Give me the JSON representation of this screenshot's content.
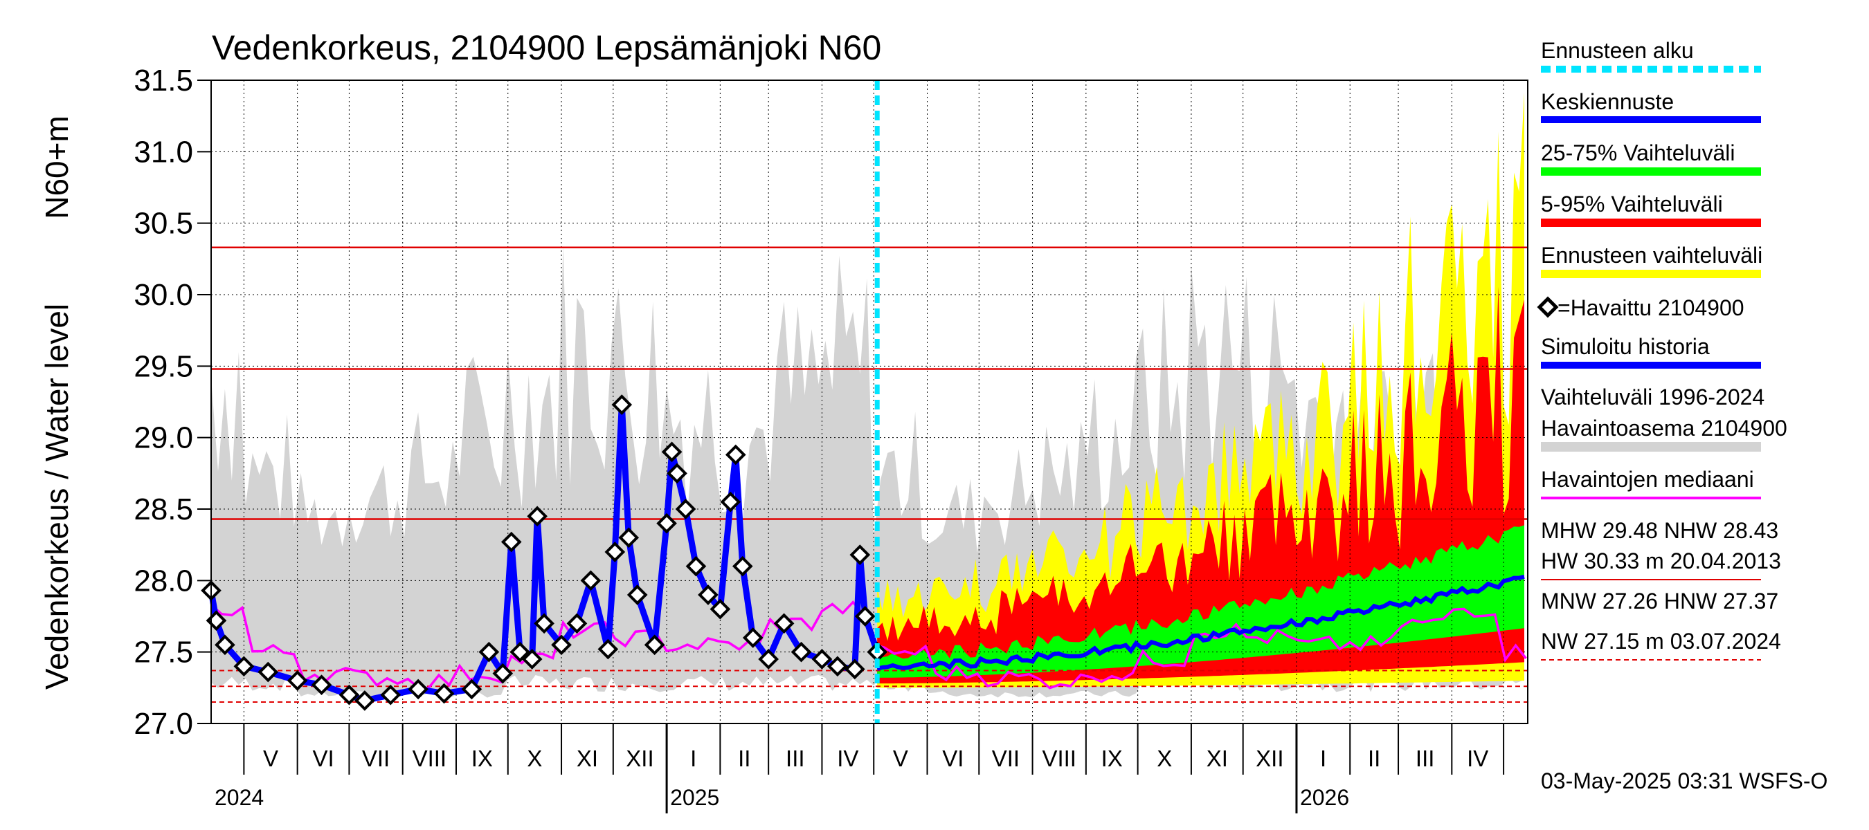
{
  "chart_data": {
    "type": "area",
    "title": "Vedenkorkeus, 2104900 Lepsämänjoki N60",
    "ylabel_unit": "N60+m",
    "ylabel": "Vedenkorkeus / Water level",
    "ylim": [
      27.0,
      31.5
    ],
    "yticks": [
      "27.0",
      "27.5",
      "28.0",
      "28.5",
      "29.0",
      "29.5",
      "30.0",
      "30.5",
      "31.0",
      "31.5"
    ],
    "xlim": [
      "2024-04-12",
      "2026-05-15"
    ],
    "forecast_start": "2025-05-03",
    "months": [
      {
        "label": "V",
        "start": "2024-05-01"
      },
      {
        "label": "VI",
        "start": "2024-06-01"
      },
      {
        "label": "VII",
        "start": "2024-07-01"
      },
      {
        "label": "VIII",
        "start": "2024-08-01"
      },
      {
        "label": "IX",
        "start": "2024-09-01"
      },
      {
        "label": "X",
        "start": "2024-10-01"
      },
      {
        "label": "XI",
        "start": "2024-11-01"
      },
      {
        "label": "XII",
        "start": "2024-12-01"
      },
      {
        "label": "I",
        "start": "2025-01-01"
      },
      {
        "label": "II",
        "start": "2025-02-01"
      },
      {
        "label": "III",
        "start": "2025-03-01"
      },
      {
        "label": "IV",
        "start": "2025-04-01"
      },
      {
        "label": "V",
        "start": "2025-05-01"
      },
      {
        "label": "VI",
        "start": "2025-06-01"
      },
      {
        "label": "VII",
        "start": "2025-07-01"
      },
      {
        "label": "VIII",
        "start": "2025-08-01"
      },
      {
        "label": "IX",
        "start": "2025-09-01"
      },
      {
        "label": "X",
        "start": "2025-10-01"
      },
      {
        "label": "XI",
        "start": "2025-11-01"
      },
      {
        "label": "XII",
        "start": "2025-12-01"
      },
      {
        "label": "I",
        "start": "2026-01-01"
      },
      {
        "label": "II",
        "start": "2026-02-01"
      },
      {
        "label": "III",
        "start": "2026-03-01"
      },
      {
        "label": "IV",
        "start": "2026-04-01"
      },
      {
        "label": "",
        "start": "2026-05-01"
      }
    ],
    "years": [
      {
        "label": "2024",
        "start": "2024-04-12"
      },
      {
        "label": "2025",
        "start": "2025-01-01"
      },
      {
        "label": "2026",
        "start": "2026-01-01"
      }
    ],
    "reference_lines": [
      {
        "name": "HW",
        "value": 30.33,
        "style": "solid"
      },
      {
        "name": "MHW",
        "value": 29.48,
        "style": "solid"
      },
      {
        "name": "NHW",
        "value": 28.43,
        "style": "solid"
      },
      {
        "name": "HNW",
        "value": 27.37,
        "style": "dashed"
      },
      {
        "name": "MNW",
        "value": 27.26,
        "style": "dashed"
      },
      {
        "name": "NW",
        "value": 27.15,
        "style": "dashed"
      }
    ],
    "observed_series": {
      "name": "=Havaittu 2104900",
      "points": [
        [
          "2024-04-12",
          27.93
        ],
        [
          "2024-04-15",
          27.72
        ],
        [
          "2024-04-20",
          27.55
        ],
        [
          "2024-05-01",
          27.4
        ],
        [
          "2024-05-15",
          27.36
        ],
        [
          "2024-06-01",
          27.3
        ],
        [
          "2024-06-15",
          27.27
        ],
        [
          "2024-07-01",
          27.2
        ],
        [
          "2024-07-10",
          27.16
        ],
        [
          "2024-07-25",
          27.2
        ],
        [
          "2024-08-10",
          27.24
        ],
        [
          "2024-08-25",
          27.21
        ],
        [
          "2024-09-10",
          27.24
        ],
        [
          "2024-09-20",
          27.5
        ],
        [
          "2024-09-28",
          27.35
        ],
        [
          "2024-10-03",
          28.27
        ],
        [
          "2024-10-08",
          27.5
        ],
        [
          "2024-10-15",
          27.45
        ],
        [
          "2024-10-18",
          28.45
        ],
        [
          "2024-10-22",
          27.7
        ],
        [
          "2024-11-01",
          27.55
        ],
        [
          "2024-11-10",
          27.7
        ],
        [
          "2024-11-18",
          28.0
        ],
        [
          "2024-11-28",
          27.52
        ],
        [
          "2024-12-02",
          28.2
        ],
        [
          "2024-12-06",
          29.23
        ],
        [
          "2024-12-10",
          28.3
        ],
        [
          "2024-12-15",
          27.9
        ],
        [
          "2024-12-25",
          27.55
        ],
        [
          "2025-01-01",
          28.4
        ],
        [
          "2025-01-04",
          28.9
        ],
        [
          "2025-01-07",
          28.75
        ],
        [
          "2025-01-12",
          28.5
        ],
        [
          "2025-01-18",
          28.1
        ],
        [
          "2025-01-25",
          27.9
        ],
        [
          "2025-02-01",
          27.8
        ],
        [
          "2025-02-07",
          28.55
        ],
        [
          "2025-02-10",
          28.88
        ],
        [
          "2025-02-14",
          28.1
        ],
        [
          "2025-02-20",
          27.6
        ],
        [
          "2025-03-01",
          27.45
        ],
        [
          "2025-03-10",
          27.7
        ],
        [
          "2025-03-20",
          27.5
        ],
        [
          "2025-04-01",
          27.45
        ],
        [
          "2025-04-10",
          27.4
        ],
        [
          "2025-04-20",
          27.38
        ],
        [
          "2025-04-23",
          28.18
        ],
        [
          "2025-04-26",
          27.75
        ],
        [
          "2025-05-03",
          27.5
        ]
      ]
    },
    "simulated_series": {
      "name": "Simuloitu historia",
      "color": "#0000ff"
    },
    "median_series": {
      "name": "Havaintojen mediaani",
      "color": "#ff00ff"
    },
    "forecast_series": {
      "name": "Keskiennuste",
      "color": "#0000ff"
    },
    "band_25_75": {
      "name": "25-75% Vaihteluväli",
      "color": "#00ff00"
    },
    "band_5_95": {
      "name": "5-95% Vaihteluväli",
      "color": "#ff0000"
    },
    "band_forecast": {
      "name": "Ennusteen vaihteluväli",
      "color": "#ffff00"
    },
    "band_history": {
      "name": "Vaihteluväli 1996-2024 Havaintoasema 2104900",
      "color": "#d3d3d3"
    }
  },
  "legend": {
    "forecast_start": "Ennusteen alku",
    "mean_forecast": "Keskiennuste",
    "band_25_75": "25-75% Vaihteluväli",
    "band_5_95": "5-95% Vaihteluväli",
    "band_forecast": "Ennusteen vaihteluväli",
    "observed": "=Havaittu 2104900",
    "simulated": "Simuloitu historia",
    "history_line1": "Vaihteluväli 1996-2024",
    "history_line2": " Havaintoasema 2104900",
    "median": "Havaintojen mediaani"
  },
  "stats": {
    "line1": "MHW  29.48 NHW  28.43",
    "line2": "HW  30.33 m 20.04.2013",
    "line3": "MNW  27.26 HNW  27.37",
    "line4": "NW  27.15 m 03.07.2024"
  },
  "footer": "03-May-2025 03:31 WSFS-O"
}
